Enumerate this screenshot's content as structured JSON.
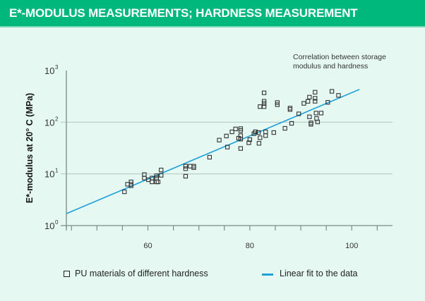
{
  "header": {
    "title": "E*-MODULUS MEASUREMENTS; HARDNESS MEASUREMENT"
  },
  "colors": {
    "header_bg": "#00b87c",
    "fit_line": "#1ba0d8",
    "marker": "#333333",
    "background": "#e6f8f2"
  },
  "chart_data": {
    "type": "scatter",
    "title": "E*-MODULUS MEASUREMENTS; HARDNESS MEASUREMENT",
    "annotation": [
      "Correlation between storage",
      "modulus and hardness"
    ],
    "xlabel": "",
    "ylabel": "E*-modulus at 20° C (MPa)",
    "xlim": [
      44,
      108
    ],
    "ylim": [
      1,
      1000
    ],
    "yscale": "log",
    "x_tick_step": 5,
    "x_tick_labels": [
      {
        "value": 60,
        "label": "60"
      },
      {
        "value": 80,
        "label": "80"
      },
      {
        "value": 100,
        "label": "100"
      }
    ],
    "y_tick_labels": [
      {
        "value": 1,
        "base": "10",
        "exp": "0"
      },
      {
        "value": 10,
        "base": "10",
        "exp": "1"
      },
      {
        "value": 100,
        "base": "10",
        "exp": "2"
      },
      {
        "value": 1000,
        "base": "10",
        "exp": "3"
      }
    ],
    "grid": "horizontal at 10 and 100",
    "series": [
      {
        "name": "PU materials of different hardness",
        "kind": "scatter",
        "points": [
          [
            55.4,
            4.5
          ],
          [
            56.0,
            6.3
          ],
          [
            56.7,
            6.3
          ],
          [
            56.7,
            7.0
          ],
          [
            56.7,
            5.9
          ],
          [
            59.3,
            9.7
          ],
          [
            59.3,
            8.3
          ],
          [
            60.1,
            7.7
          ],
          [
            60.8,
            8.3
          ],
          [
            60.8,
            7.0
          ],
          [
            61.7,
            8.3
          ],
          [
            61.7,
            7.0
          ],
          [
            61.7,
            9.2
          ],
          [
            62.6,
            9.4
          ],
          [
            62.6,
            11.9
          ],
          [
            62.0,
            7.0
          ],
          [
            67.4,
            9.0
          ],
          [
            67.4,
            12.6
          ],
          [
            67.4,
            14.1
          ],
          [
            68.3,
            14.1
          ],
          [
            69.0,
            14.1
          ],
          [
            69.0,
            13.2
          ],
          [
            72.1,
            21
          ],
          [
            74.0,
            45
          ],
          [
            75.4,
            54
          ],
          [
            75.6,
            33
          ],
          [
            76.5,
            65
          ],
          [
            77.2,
            74
          ],
          [
            78.2,
            69
          ],
          [
            78.2,
            55
          ],
          [
            78.2,
            47
          ],
          [
            78.2,
            31
          ],
          [
            78.2,
            75
          ],
          [
            77.8,
            49
          ],
          [
            80.0,
            46
          ],
          [
            79.8,
            40
          ],
          [
            80.8,
            60
          ],
          [
            81.1,
            65
          ],
          [
            81.7,
            63
          ],
          [
            81.8,
            39
          ],
          [
            82.0,
            50
          ],
          [
            81.1,
            65
          ],
          [
            82.0,
            200
          ],
          [
            82.8,
            200
          ],
          [
            82.8,
            370
          ],
          [
            82.8,
            254
          ],
          [
            82.8,
            230
          ],
          [
            83.1,
            55
          ],
          [
            83.1,
            65
          ],
          [
            84.7,
            63
          ],
          [
            85.4,
            218
          ],
          [
            85.4,
            240
          ],
          [
            86.9,
            76
          ],
          [
            88.2,
            95
          ],
          [
            87.9,
            187
          ],
          [
            87.9,
            176
          ],
          [
            89.6,
            145
          ],
          [
            90.6,
            231
          ],
          [
            91.4,
            253
          ],
          [
            91.7,
            305
          ],
          [
            92.0,
            97
          ],
          [
            92.0,
            91
          ],
          [
            91.7,
            127
          ],
          [
            92.8,
            380
          ],
          [
            92.8,
            254
          ],
          [
            92.8,
            290
          ],
          [
            93.0,
            150
          ],
          [
            93.3,
            101
          ],
          [
            93.1,
            118
          ],
          [
            94.0,
            150
          ],
          [
            95.3,
            242
          ],
          [
            96.1,
            395
          ],
          [
            97.4,
            330
          ]
        ]
      },
      {
        "name": "Linear fit to the data",
        "kind": "line",
        "points": [
          [
            44,
            1.7
          ],
          [
            101.5,
            430
          ]
        ]
      }
    ],
    "legend": {
      "placement": "bottom",
      "entries": [
        {
          "label": "PU materials of different hardness",
          "marker": "open-square"
        },
        {
          "label": "Linear fit to the data",
          "marker": "line"
        }
      ]
    }
  }
}
